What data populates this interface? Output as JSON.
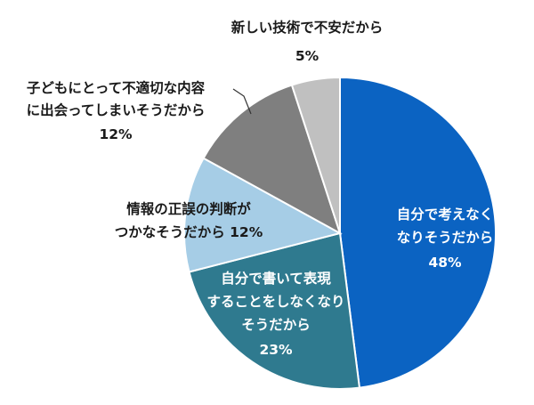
{
  "chart_data": {
    "type": "pie",
    "title": "",
    "start_angle_deg": 180,
    "direction": "counterclockwise",
    "slices": [
      {
        "label_lines": [
          "自分で考えなく",
          "なりそうだから"
        ],
        "percent_label": "48%",
        "value": 48,
        "color": "#0b63c2",
        "label_color": "light"
      },
      {
        "label_lines": [
          "自分で書いて表現",
          "することをしなくなり",
          "そうだから"
        ],
        "percent_label": "23%",
        "value": 23,
        "color": "#2f7a8f",
        "label_color": "light"
      },
      {
        "label_lines": [
          "情報の正誤の判断が",
          "つかなそうだから 12%"
        ],
        "percent_label": "",
        "value": 12,
        "color": "#a6cde6",
        "label_color": "dark"
      },
      {
        "label_lines": [
          "子どもにとって不適切な内容",
          "に出会ってしまいそうだから"
        ],
        "percent_label": "12%",
        "value": 12,
        "color": "#7f7f7f",
        "label_color": "dark"
      },
      {
        "label_lines": [
          "新しい技術で不安だから"
        ],
        "percent_label": "5%",
        "value": 5,
        "color": "#c0c0c0",
        "label_color": "dark"
      }
    ]
  }
}
